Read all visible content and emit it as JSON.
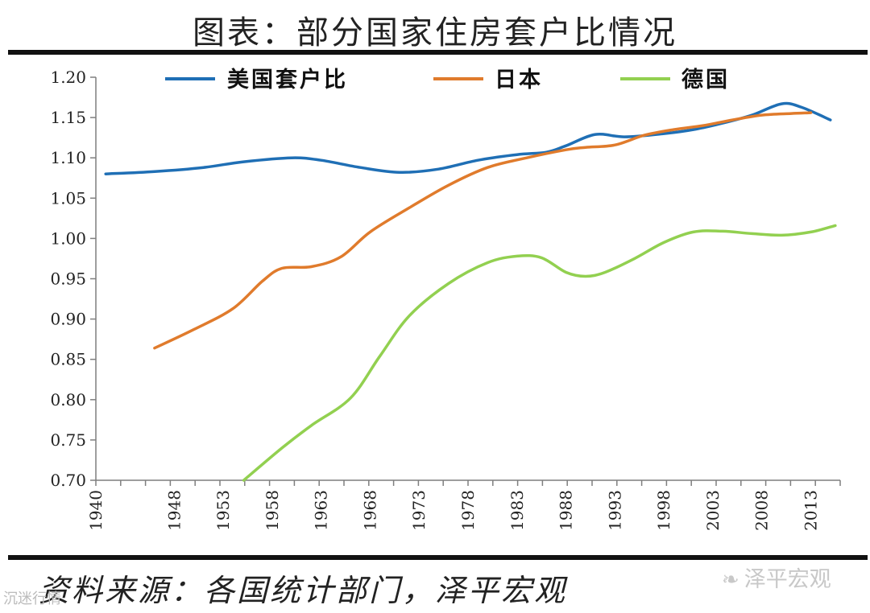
{
  "title": "图表：部分国家住房套户比情况",
  "source": "资料来源：各国统计部门，泽平宏观",
  "watermark_right": "泽平宏观",
  "watermark_left": "沉迷行情",
  "colors": {
    "us": "#1f6fb5",
    "japan": "#e07b2c",
    "germany": "#92d050"
  },
  "chart_data": {
    "type": "line",
    "title": "图表：部分国家住房套户比情况",
    "xlabel": "",
    "ylabel": "",
    "xlim": [
      1940,
      2016
    ],
    "ylim": [
      0.7,
      1.2
    ],
    "y_ticks": [
      "0.70",
      "0.75",
      "0.80",
      "0.85",
      "0.90",
      "0.95",
      "1.00",
      "1.05",
      "1.10",
      "1.15",
      "1.20"
    ],
    "x_tick_labels": [
      "1940",
      "1948",
      "1953",
      "1958",
      "1963",
      "1968",
      "1973",
      "1978",
      "1983",
      "1988",
      "1993",
      "1998",
      "2003",
      "2008",
      "2013"
    ],
    "x_tick_positions": [
      1940,
      1948,
      1953,
      1958,
      1963,
      1968,
      1973,
      1978,
      1983,
      1988,
      1993,
      1998,
      2003,
      2008,
      2013
    ],
    "legend_position": "top",
    "series": [
      {
        "name": "美国套户比",
        "color": "#1f6fb5",
        "x": [
          1941,
          1946,
          1951,
          1955,
          1960,
          1963,
          1967,
          1971,
          1975,
          1979,
          1983,
          1986,
          1988,
          1991,
          1994,
          1998,
          2001,
          2004,
          2007,
          2010,
          2012,
          2015
        ],
        "values": [
          1.08,
          1.083,
          1.088,
          1.095,
          1.1,
          1.097,
          1.088,
          1.082,
          1.086,
          1.097,
          1.104,
          1.107,
          1.115,
          1.129,
          1.126,
          1.13,
          1.135,
          1.143,
          1.153,
          1.167,
          1.163,
          1.147
        ]
      },
      {
        "name": "日本",
        "color": "#e07b2c",
        "x": [
          1946,
          1950,
          1954,
          1957,
          1959,
          1962,
          1965,
          1968,
          1972,
          1976,
          1980,
          1984,
          1988,
          1990,
          1993,
          1996,
          1999,
          2002,
          2005,
          2008,
          2011,
          2013
        ],
        "values": [
          0.864,
          0.887,
          0.913,
          0.947,
          0.963,
          0.965,
          0.977,
          1.008,
          1.038,
          1.066,
          1.088,
          1.1,
          1.11,
          1.113,
          1.116,
          1.128,
          1.135,
          1.14,
          1.147,
          1.153,
          1.155,
          1.156
        ]
      },
      {
        "name": "德国",
        "color": "#92d050",
        "x": [
          1955.1,
          1959,
          1962,
          1966,
          1969,
          1972,
          1976,
          1980,
          1983,
          1985.5,
          1988,
          1990,
          1992,
          1995,
          1998,
          2001,
          2004,
          2007,
          2010,
          2013,
          2015.5
        ],
        "values": [
          0.7,
          0.74,
          0.768,
          0.802,
          0.854,
          0.904,
          0.944,
          0.97,
          0.978,
          0.976,
          0.958,
          0.953,
          0.958,
          0.975,
          0.995,
          1.008,
          1.009,
          1.006,
          1.004,
          1.008,
          1.016
        ]
      }
    ]
  }
}
